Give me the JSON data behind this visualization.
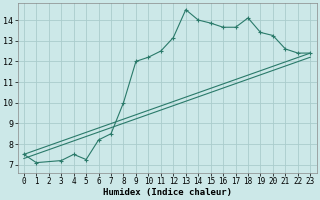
{
  "xlabel": "Humidex (Indice chaleur)",
  "background_color": "#cce8e8",
  "grid_color": "#aacccc",
  "line_color": "#2a7a6a",
  "xlim": [
    -0.5,
    23.5
  ],
  "ylim": [
    6.6,
    14.8
  ],
  "xticks": [
    0,
    1,
    2,
    3,
    4,
    5,
    6,
    7,
    8,
    9,
    10,
    11,
    12,
    13,
    14,
    15,
    16,
    17,
    18,
    19,
    20,
    21,
    22,
    23
  ],
  "yticks": [
    7,
    8,
    9,
    10,
    11,
    12,
    13,
    14
  ],
  "series": [
    {
      "x": [
        0,
        1,
        3,
        4,
        5,
        6,
        7,
        8,
        9,
        10,
        11,
        12,
        13,
        14,
        15,
        16,
        17,
        18,
        19,
        20,
        21,
        22,
        23
      ],
      "y": [
        7.5,
        7.1,
        7.2,
        7.5,
        7.25,
        8.2,
        8.5,
        10.0,
        12.0,
        12.2,
        12.5,
        13.15,
        14.5,
        14.0,
        13.85,
        13.65,
        13.65,
        14.1,
        13.4,
        13.25,
        12.6,
        12.4,
        12.4
      ],
      "marker": true
    },
    {
      "x": [
        0,
        23
      ],
      "y": [
        7.5,
        12.4
      ],
      "marker": false
    },
    {
      "x": [
        0,
        23
      ],
      "y": [
        7.5,
        12.4
      ],
      "marker": false,
      "offset": true
    }
  ],
  "line2_x": [
    0,
    23
  ],
  "line2_y": [
    7.5,
    12.4
  ],
  "line3_x": [
    0,
    23
  ],
  "line3_y": [
    7.5,
    12.4
  ]
}
